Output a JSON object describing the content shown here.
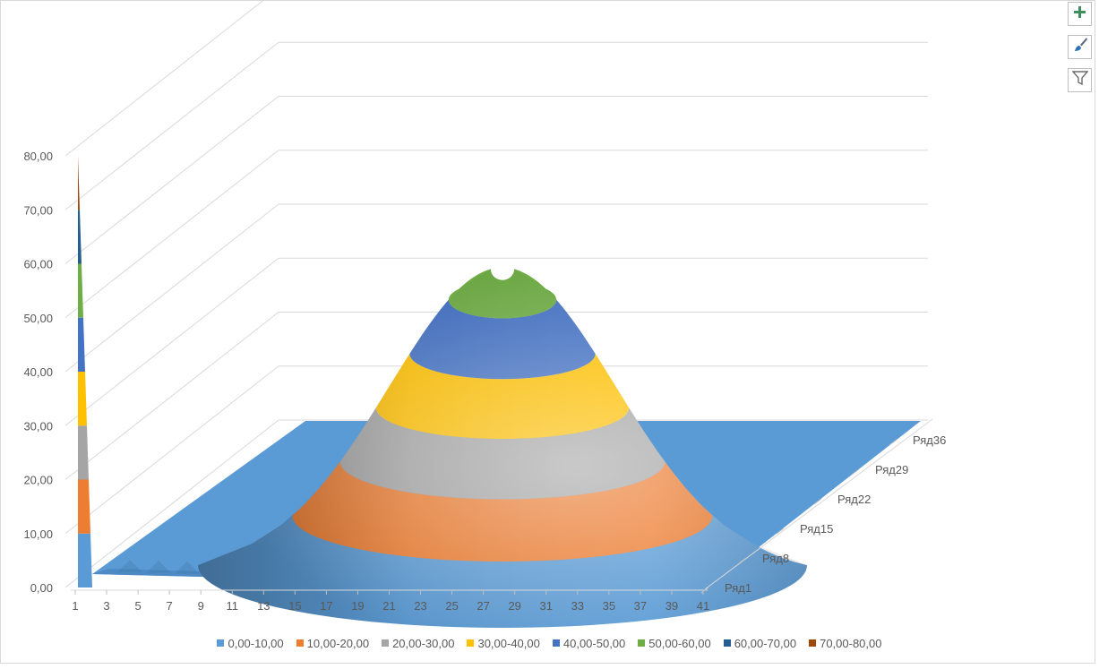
{
  "chart_data": {
    "type": "surface",
    "z_ticks": [
      "0,00",
      "10,00",
      "20,00",
      "30,00",
      "40,00",
      "50,00",
      "60,00",
      "70,00",
      "80,00"
    ],
    "zlim": [
      0,
      80
    ],
    "x_ticks": [
      "1",
      "3",
      "5",
      "7",
      "9",
      "11",
      "13",
      "15",
      "17",
      "19",
      "21",
      "23",
      "25",
      "27",
      "29",
      "31",
      "33",
      "35",
      "37",
      "39",
      "41"
    ],
    "depth_ticks": [
      "Ряд1",
      "Ряд8",
      "Ряд15",
      "Ряд22",
      "Ряд29",
      "Ряд36"
    ],
    "surface_peak": 56,
    "corner_spike": 80,
    "legend": "bottom",
    "bands": [
      {
        "label": "0,00-10,00",
        "color": "#5b9bd5"
      },
      {
        "label": "10,00-20,00",
        "color": "#ed7d31"
      },
      {
        "label": "20,00-30,00",
        "color": "#a5a5a5"
      },
      {
        "label": "30,00-40,00",
        "color": "#ffc000"
      },
      {
        "label": "40,00-50,00",
        "color": "#4472c4"
      },
      {
        "label": "50,00-60,00",
        "color": "#70ad47"
      },
      {
        "label": "60,00-70,00",
        "color": "#255e91"
      },
      {
        "label": "70,00-80,00",
        "color": "#9e480e"
      }
    ]
  },
  "toolbar": {
    "add_icon": "plus-icon",
    "style_icon": "paintbrush-icon",
    "filter_icon": "funnel-icon"
  }
}
